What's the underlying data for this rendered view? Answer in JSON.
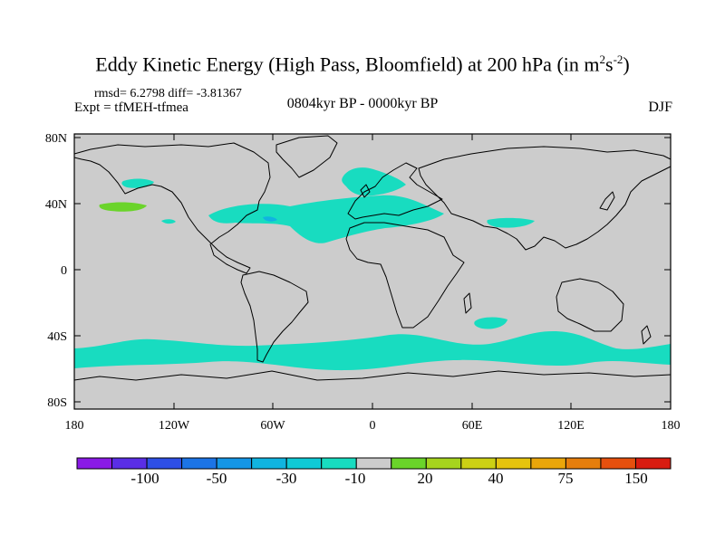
{
  "header": {
    "title_main": "Eddy Kinetic Energy (High Pass, Bloomfield) at 200 hPa (in m",
    "title_unit_exp1": "2",
    "title_unit_s": "s",
    "title_unit_exp2": "-2",
    "title_close": ")",
    "stats": "rmsd= 6.2798 diff= -3.81367",
    "experiment": "Expt = tfMEH-tfmea",
    "period": "0804kyr BP - 0000kyr BP",
    "season": "DJF"
  },
  "axes": {
    "lat_labels": [
      "80N",
      "40N",
      "0",
      "40S",
      "80S"
    ],
    "lon_labels": [
      "180",
      "120W",
      "60W",
      "0",
      "60E",
      "120E",
      "180"
    ]
  },
  "colorbar": {
    "colors": [
      "#8a1ae6",
      "#5a2ee6",
      "#2e4fe6",
      "#1c74e6",
      "#1496e6",
      "#10b4e0",
      "#0fcad6",
      "#18dcc0",
      "#cccccc",
      "#6ad42a",
      "#a6d41e",
      "#ccd014",
      "#e6c40e",
      "#eaa60a",
      "#e67e0c",
      "#e6500e",
      "#d81c10"
    ],
    "labels": [
      "-100",
      "-50",
      "-30",
      "-10",
      "20",
      "40",
      "75",
      "150"
    ]
  },
  "colors": {
    "ocean": "#cccccc",
    "anomaly_neg": "#18dcc0",
    "anomaly_neg_strong": "#10b4e0",
    "anomaly_pos": "#6ad42a"
  }
}
